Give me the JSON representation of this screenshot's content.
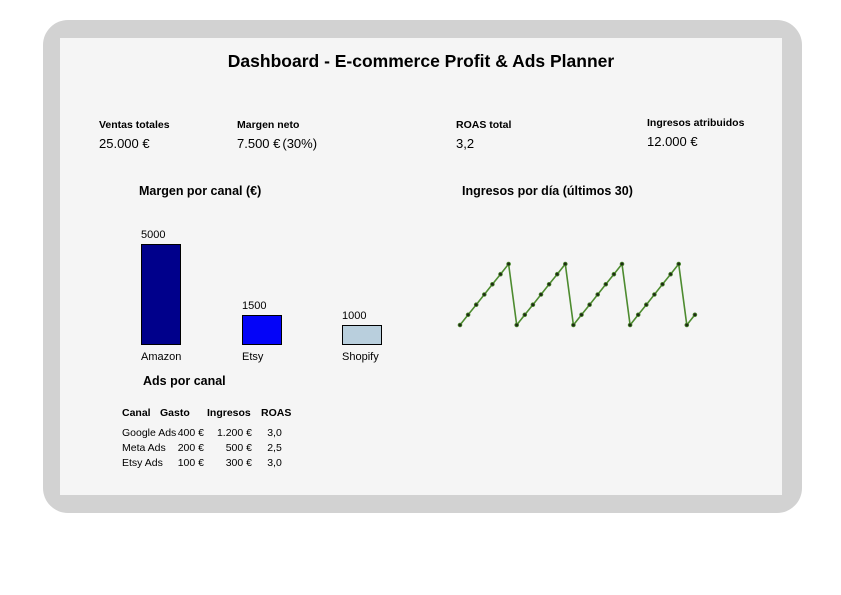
{
  "header": {
    "title": "Dashboard - E-commerce Profit & Ads Planner"
  },
  "kpis": [
    {
      "label": "Ventas totales",
      "value": "25.000 €"
    },
    {
      "label": "Margen neto",
      "value": "7.500 €",
      "suffix": "(30%)"
    },
    {
      "label": "ROAS total",
      "value": "3,2"
    },
    {
      "label": "Ingresos atribuidos",
      "value": "12.000 €"
    }
  ],
  "chart_data": [
    {
      "type": "bar",
      "title": "Margen por canal (€)",
      "categories": [
        "Amazon",
        "Etsy",
        "Shopify"
      ],
      "values": [
        5000,
        1500,
        1000
      ],
      "value_labels": [
        "5000",
        "1500",
        "1000"
      ],
      "bar_colors": [
        "#00008b",
        "#0404f8",
        "#b9cfdd"
      ],
      "bar_border_color": "#000000",
      "ylim": [
        0,
        5000
      ],
      "grid": false,
      "axes_shown": false,
      "legend": "none"
    },
    {
      "type": "line",
      "title": "Ingresos por día (últimos 30)",
      "x": [
        1,
        2,
        3,
        4,
        5,
        6,
        7,
        8,
        9,
        10,
        11,
        12,
        13,
        14,
        15,
        16,
        17,
        18,
        19,
        20,
        21,
        22,
        23,
        24,
        25,
        26,
        27,
        28,
        29,
        30
      ],
      "values": [
        100,
        150,
        200,
        250,
        300,
        350,
        400,
        100,
        150,
        200,
        250,
        300,
        350,
        400,
        100,
        150,
        200,
        250,
        300,
        350,
        400,
        100,
        150,
        200,
        250,
        300,
        350,
        400,
        100,
        150
      ],
      "values_note": "estimated from pixel positions; no axis labels visible; 7-day rising sawtooth, 4 peaks",
      "line_color": "#4d8b2f",
      "marker_color": "#1e2b14",
      "grid": false,
      "axes_shown": false,
      "legend": "none"
    }
  ],
  "ads_table": {
    "title": "Ads por canal",
    "columns": [
      "Canal",
      "Gasto",
      "Ingresos",
      "ROAS"
    ],
    "rows": [
      [
        "Google Ads",
        "400 €",
        "1.200 €",
        "3,0"
      ],
      [
        "Meta Ads",
        "200 €",
        "500 €",
        "2,5"
      ],
      [
        "Etsy Ads",
        "100 €",
        "300 €",
        "3,0"
      ]
    ]
  },
  "colors": {
    "canvas_bg": "#ffffff",
    "card_bg": "#d2d2d2",
    "panel_bg": "#f5f5f5",
    "text": "#000000"
  }
}
